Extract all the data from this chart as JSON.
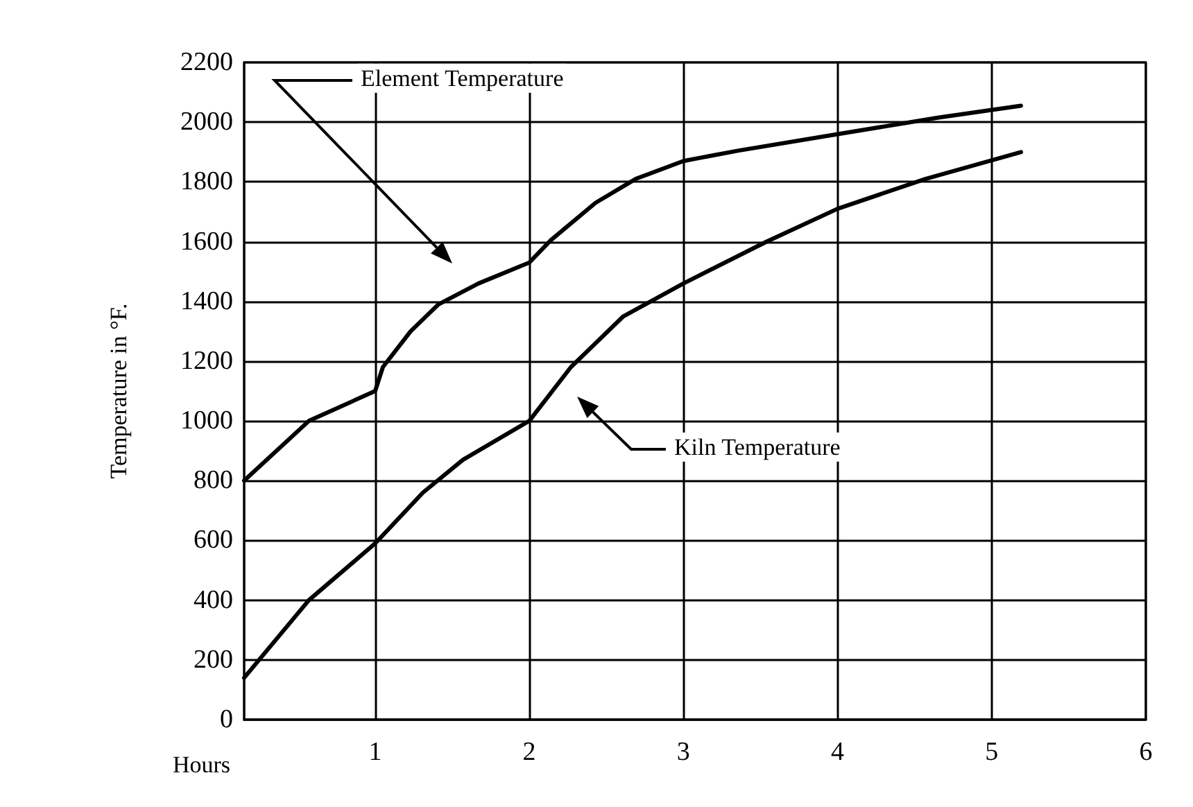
{
  "chart_data": {
    "type": "line",
    "xlabel": "Hours",
    "ylabel": "Temperature in °F.",
    "xlim": [
      0.15,
      6
    ],
    "xticks": [
      1,
      2,
      3,
      4,
      5,
      6
    ],
    "ylim": [
      0,
      2200
    ],
    "yticks": [
      0,
      200,
      400,
      600,
      800,
      1000,
      1200,
      1400,
      1600,
      1800,
      2000,
      2200
    ],
    "grid": true,
    "marker": "none",
    "line_style": "solid",
    "series": [
      {
        "color": "#000000",
        "x": [
          0.15,
          0.57,
          1,
          1.05,
          1.23,
          1.41,
          1.67,
          2,
          2.14,
          2.43,
          2.69,
          3,
          3.36,
          4,
          4.65,
          5.19
        ],
        "values": [
          800,
          1000,
          1100,
          1180,
          1300,
          1390,
          1460,
          1530,
          1605,
          1730,
          1810,
          1870,
          1905,
          1960,
          2015,
          2055
        ]
      },
      {
        "color": "#000000",
        "x": [
          0.15,
          0.57,
          1,
          1.31,
          1.57,
          2,
          2.27,
          2.61,
          3,
          3.54,
          4,
          4.57,
          5.19
        ],
        "values": [
          140,
          400,
          590,
          760,
          870,
          1000,
          1180,
          1350,
          1460,
          1600,
          1710,
          1810,
          1900
        ]
      }
    ],
    "annotations": [
      "Element Temperature",
      "Kiln Temperature"
    ]
  }
}
